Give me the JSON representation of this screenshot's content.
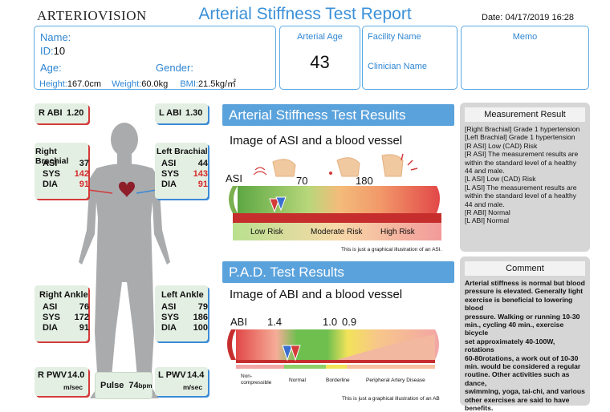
{
  "header": {
    "logo": "ARTERIOVISION",
    "title": "Arterial Stiffness Test Report",
    "date": "Date: 04/17/2019 16:28"
  },
  "patient": {
    "name_label": "Name:",
    "id_label": "ID:",
    "id_value": "10",
    "age_label": "Age:",
    "gender_label": "Gender:",
    "height_label": "Height:",
    "height_value": "167.0cm",
    "weight_label": "Weight:",
    "weight_value": "60.0kg",
    "bmi_label": "BMI:",
    "bmi_value": "21.5kg/㎡"
  },
  "arterial_age": {
    "label": "Arterial Age",
    "value": "43"
  },
  "facility": {
    "facility_label": "Facility Name",
    "clinician_label": "Clinician Name"
  },
  "memo": {
    "label": "Memo"
  },
  "body": {
    "r_abi": {
      "label": "R ABI",
      "value": "1.20"
    },
    "l_abi": {
      "label": "L ABI",
      "value": "1.30"
    },
    "right_brachial": {
      "title": "Right Brachial",
      "asi": "37",
      "sys": "142",
      "dia": "91"
    },
    "left_brachial": {
      "title": "Left Brachial",
      "asi": "44",
      "sys": "143",
      "dia": "91"
    },
    "right_ankle": {
      "title": "Right Ankle",
      "asi": "76",
      "sys": "172",
      "dia": "91"
    },
    "left_ankle": {
      "title": "Left Ankle",
      "asi": "79",
      "sys": "186",
      "dia": "100"
    },
    "row_labels": {
      "asi": "ASI",
      "sys": "SYS",
      "dia": "DIA"
    },
    "r_pwv": {
      "label": "R PWV",
      "value": "14.0",
      "unit": "m/sec"
    },
    "l_pwv": {
      "label": "L PWV",
      "value": "14.4",
      "unit": "m/sec"
    },
    "pulse": {
      "label": "Pulse",
      "value": "74",
      "unit": "bpm"
    }
  },
  "asi_section": {
    "title": "Arterial Stiffness Test Results",
    "subtitle": "Image of ASI and a blood vessel",
    "axis_label": "ASI",
    "tick1": "70",
    "tick2": "180",
    "zone_low": "Low Risk",
    "zone_moderate": "Moderate Risk",
    "zone_high": "High Risk",
    "note": "This is just a graphical illustration of an ASI."
  },
  "pad_section": {
    "title": "P.A.D. Test Results",
    "subtitle": "Image of ABI and a blood vessel",
    "axis_label": "ABI",
    "tick1": "1.4",
    "tick2": "1.0",
    "tick3": "0.9",
    "zone_noncomp_1": "Non-",
    "zone_noncomp_2": "compressible",
    "zone_normal": "Normal",
    "zone_borderline": "Borderline",
    "zone_pad": "Peripheral Artery Disease",
    "note": "This is just a graphical illustration of an AB"
  },
  "measurement": {
    "title": "Measurement Result",
    "lines": [
      "[Right Brachial] Grade 1 hypertension",
      "[Left Brachial] Grade 1 hypertension",
      "[R ASI] Low (CAD) Risk",
      "[R ASI] The measurement results are",
      "within the standard level of a healthy",
      "44 and male.",
      "[L ASI] Low (CAD) Risk",
      "[L ASI] The measurement results are",
      "within the standard level of a healthy",
      "44 and male.",
      "[R ABI] Normal",
      "[L ABI] Normal"
    ]
  },
  "comment": {
    "title": "Comment",
    "lines": [
      "Arterial stiffness is normal but blood",
      "pressure is elevated. Generally light",
      "exercise is beneficial to lowering blood",
      "pressure. Walking or running 10-30",
      "min., cycling 40 min., exercise bicycle",
      "set approximately 40-100W, rotations",
      "60-80rotations, a work out of 10-30",
      "min. would be considered a regular",
      "routine. Other activities such as dance,",
      "swimming, yoga, tai-chi, and various",
      "other exercises are said to have",
      "benefits."
    ]
  },
  "colors": {
    "accent_blue": "#3a90d8",
    "alert_red": "#d42a2a",
    "low_risk_green": "#8fcf6a",
    "moderate_orange": "#f2b26a",
    "high_risk_red": "#e24848"
  }
}
